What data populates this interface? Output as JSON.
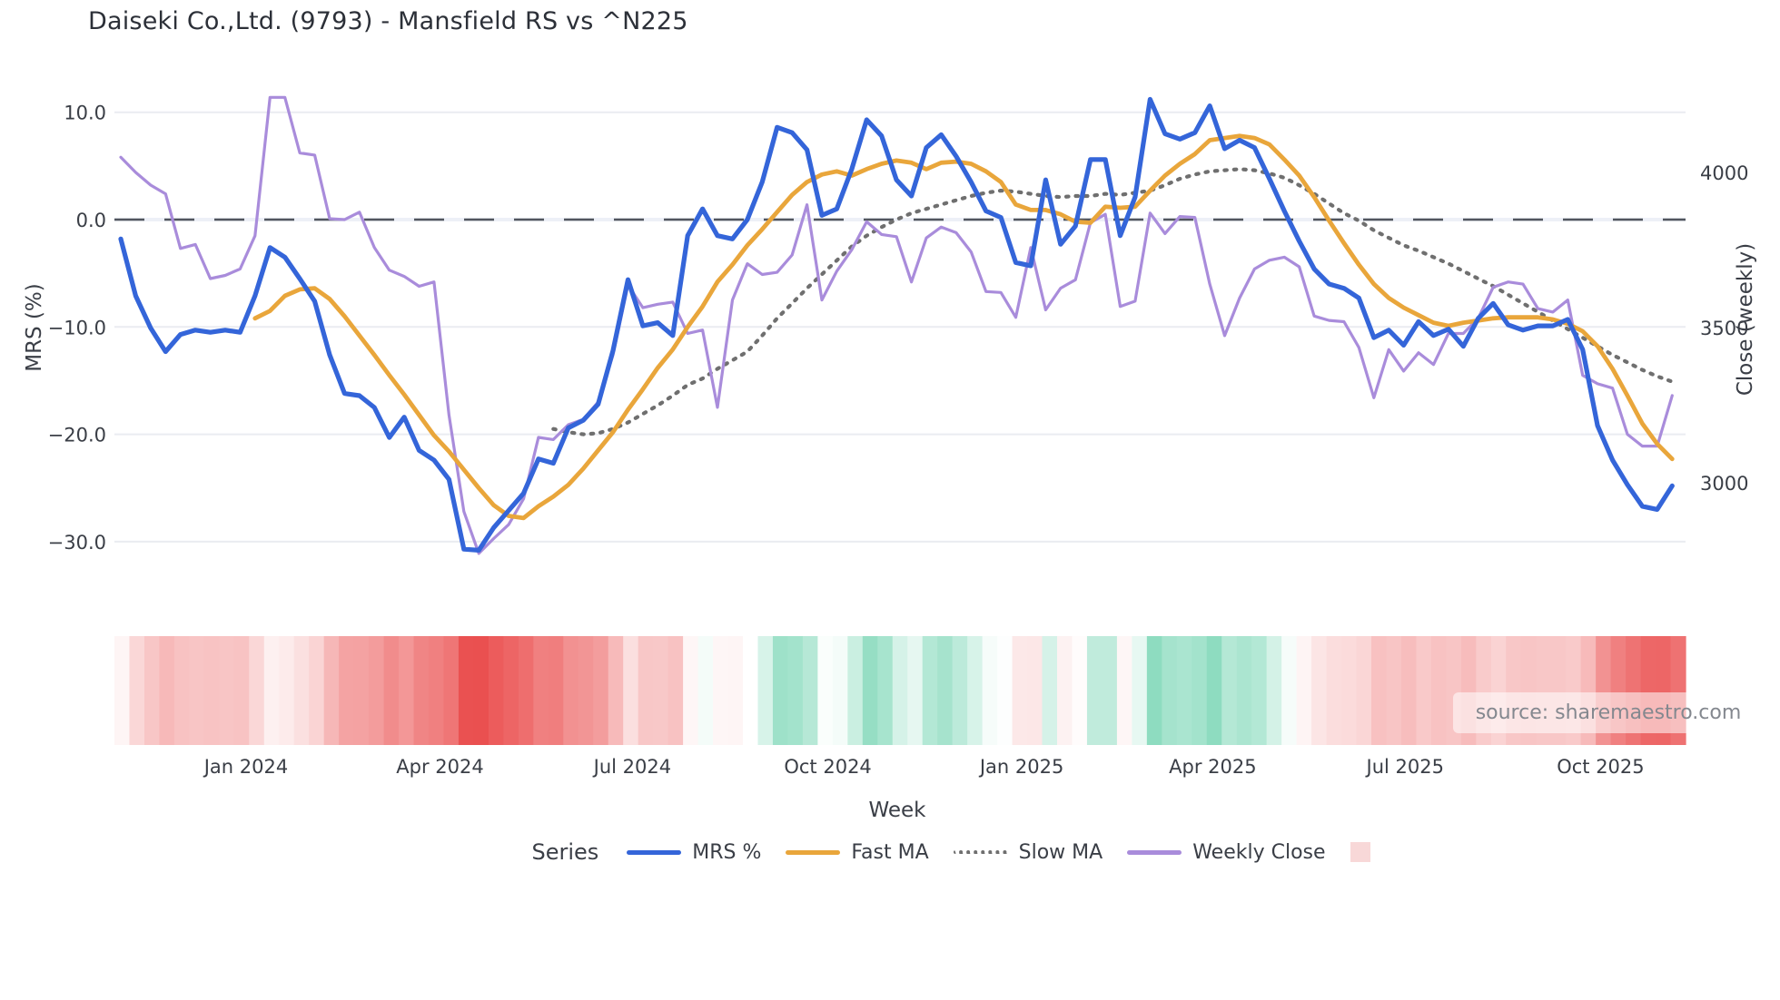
{
  "title": "Daiseki Co.,Ltd. (9793) - Mansfield RS vs ^N225",
  "watermark": "source: sharemaestro.com",
  "axes": {
    "left": {
      "title": "MRS (%)",
      "ticks": [
        {
          "label": "10.0",
          "value": 10
        },
        {
          "label": "0.0",
          "value": 0
        },
        {
          "label": "−10.0",
          "value": -10
        },
        {
          "label": "−20.0",
          "value": -20
        },
        {
          "label": "−30.0",
          "value": -30
        }
      ]
    },
    "right": {
      "title": "Close (weekly)",
      "ticks": [
        {
          "label": "4000",
          "value": 4000
        },
        {
          "label": "3500",
          "value": 3500
        },
        {
          "label": "3000",
          "value": 3000
        }
      ]
    },
    "x": {
      "title": "Week",
      "ticks": [
        {
          "label": "Jan 2024",
          "week": 8.4
        },
        {
          "label": "Apr 2024",
          "week": 21.4
        },
        {
          "label": "Jul 2024",
          "week": 34.3
        },
        {
          "label": "Oct 2024",
          "week": 47.4
        },
        {
          "label": "Jan 2025",
          "week": 60.4
        },
        {
          "label": "Apr 2025",
          "week": 73.2
        },
        {
          "label": "Jul 2025",
          "week": 86.1
        },
        {
          "label": "Oct 2025",
          "week": 99.2
        }
      ]
    }
  },
  "legend": {
    "title": "Series",
    "items": [
      {
        "label": "MRS %",
        "color": "#3465d9",
        "style": "solid"
      },
      {
        "label": "Fast MA",
        "color": "#e9a63b",
        "style": "solid"
      },
      {
        "label": "Slow MA",
        "color": "#6f6f6f",
        "style": "dotted"
      },
      {
        "label": "Weekly Close",
        "color": "#a98cdb",
        "style": "solid"
      },
      {
        "label": "",
        "color": "#f8d8d8",
        "style": "swatch"
      }
    ]
  },
  "colors": {
    "grid": "#eaecf1",
    "zero_line": "#52565e",
    "zero_band": "#edf0f7",
    "text": "#3a3e46",
    "blue": "#3465d9",
    "orange": "#e9a63b",
    "gray": "#6f6f6f",
    "purple": "#a98cdb",
    "heat_red": "#ea4f4f",
    "heat_green": "#8edcc0"
  },
  "chart_data": {
    "type": "line",
    "title": "Daiseki Co.,Ltd. (9793) - Mansfield RS vs ^N225",
    "xlabel": "Week",
    "ylabel_left": "MRS (%)",
    "ylabel_right": "Close (weekly)",
    "x_unit": "weekly index, ~Nov 2023 to ~Nov 2025",
    "n_points": 105,
    "ylim_left": [
      -33,
      13
    ],
    "right_axis_ticks": [
      3000,
      3500,
      4000
    ],
    "grid": true,
    "zero_reference_line": true,
    "series": [
      {
        "name": "MRS %",
        "axis": "left",
        "style": "solid",
        "width": 5.2,
        "color": "#3465d9",
        "values": [
          -1.8,
          -7.1,
          -10.1,
          -12.3,
          -10.7,
          -10.3,
          -10.5,
          -10.3,
          -10.5,
          -7.1,
          -2.6,
          -3.5,
          -5.5,
          -7.6,
          -12.6,
          -16.2,
          -16.4,
          -17.5,
          -20.3,
          -18.4,
          -21.5,
          -22.4,
          -24.2,
          -30.7,
          -30.8,
          -28.7,
          -27.1,
          -25.5,
          -22.3,
          -22.7,
          -19.4,
          -18.7,
          -17.2,
          -12.2,
          -5.6,
          -9.9,
          -9.6,
          -10.8,
          -1.5,
          1.0,
          -1.5,
          -1.8,
          0.0,
          3.5,
          8.6,
          8.1,
          6.5,
          0.4,
          1.0,
          4.7,
          9.3,
          7.8,
          3.7,
          2.2,
          6.7,
          7.9,
          5.9,
          3.5,
          0.8,
          0.2,
          -4.0,
          -4.3,
          3.7,
          -2.3,
          -0.6,
          5.6,
          5.6,
          -1.5,
          2.1,
          11.2,
          8.0,
          7.5,
          8.1,
          10.6,
          6.6,
          7.4,
          6.7,
          3.8,
          0.8,
          -2.0,
          -4.6,
          -6.0,
          -6.4,
          -7.3,
          -11.0,
          -10.3,
          -11.7,
          -9.5,
          -10.8,
          -10.2,
          -11.8,
          -9.2,
          -7.8,
          -9.8,
          -10.3,
          -9.9,
          -9.9,
          -9.3,
          -12.1,
          -19.2,
          -22.4,
          -24.7,
          -26.7,
          -27.0,
          -24.8
        ]
      },
      {
        "name": "Fast MA",
        "axis": "left",
        "style": "solid",
        "width": 4.8,
        "color": "#e9a63b",
        "values": [
          null,
          null,
          null,
          null,
          null,
          null,
          null,
          null,
          null,
          -9.2,
          -8.5,
          -7.1,
          -6.5,
          -6.4,
          -7.4,
          -9.0,
          -10.8,
          -12.6,
          -14.5,
          -16.3,
          -18.2,
          -20.1,
          -21.6,
          -23.3,
          -25.0,
          -26.6,
          -27.6,
          -27.8,
          -26.7,
          -25.8,
          -24.7,
          -23.2,
          -21.5,
          -19.8,
          -17.7,
          -15.8,
          -13.8,
          -12.1,
          -10.0,
          -8.1,
          -5.8,
          -4.2,
          -2.4,
          -0.9,
          0.7,
          2.3,
          3.5,
          4.2,
          4.5,
          4.1,
          4.7,
          5.2,
          5.5,
          5.3,
          4.7,
          5.3,
          5.4,
          5.2,
          4.5,
          3.5,
          1.4,
          0.9,
          0.9,
          0.5,
          -0.2,
          -0.3,
          1.2,
          1.1,
          1.2,
          2.7,
          4.1,
          5.2,
          6.1,
          7.4,
          7.6,
          7.8,
          7.6,
          7.0,
          5.6,
          4.1,
          2.1,
          -0.1,
          -2.2,
          -4.2,
          -6.0,
          -7.3,
          -8.2,
          -8.9,
          -9.6,
          -9.9,
          -9.6,
          -9.4,
          -9.2,
          -9.1,
          -9.1,
          -9.1,
          -9.3,
          -9.7,
          -10.4,
          -11.8,
          -13.9,
          -16.4,
          -19.0,
          -20.9,
          -22.3
        ]
      },
      {
        "name": "Slow MA",
        "axis": "left",
        "style": "dotted",
        "width": 4.2,
        "color": "#6f6f6f",
        "values": [
          null,
          null,
          null,
          null,
          null,
          null,
          null,
          null,
          null,
          null,
          null,
          null,
          null,
          null,
          null,
          null,
          null,
          null,
          null,
          null,
          null,
          null,
          null,
          null,
          null,
          null,
          null,
          null,
          null,
          -19.5,
          -19.8,
          -20.0,
          -19.9,
          -19.5,
          -18.9,
          -18.1,
          -17.3,
          -16.4,
          -15.4,
          -14.8,
          -13.9,
          -13.1,
          -12.3,
          -10.8,
          -9.2,
          -7.8,
          -6.4,
          -5.1,
          -3.8,
          -2.5,
          -1.5,
          -0.7,
          0.0,
          0.6,
          1.0,
          1.4,
          1.8,
          2.2,
          2.5,
          2.7,
          2.6,
          2.4,
          2.2,
          2.1,
          2.2,
          2.2,
          2.4,
          2.3,
          2.5,
          2.7,
          3.2,
          3.8,
          4.2,
          4.5,
          4.6,
          4.7,
          4.6,
          4.3,
          3.9,
          3.2,
          2.4,
          1.5,
          0.6,
          -0.1,
          -1.0,
          -1.7,
          -2.4,
          -2.9,
          -3.5,
          -4.1,
          -4.8,
          -5.5,
          -6.2,
          -7.0,
          -7.8,
          -8.6,
          -9.4,
          -10.2,
          -11.0,
          -11.8,
          -12.6,
          -13.3,
          -14.0,
          -14.6,
          -15.1
        ]
      },
      {
        "name": "Weekly Close",
        "axis": "right",
        "style": "solid",
        "width": 3.2,
        "color": "#a98cdb",
        "values": [
          4049,
          4000,
          3959,
          3931,
          3755,
          3768,
          3658,
          3668,
          3689,
          3796,
          4242,
          4242,
          4063,
          4056,
          3851,
          3848,
          3872,
          3758,
          3685,
          3665,
          3633,
          3647,
          3218,
          2907,
          2772,
          2820,
          2865,
          2948,
          3146,
          3139,
          3187,
          3204,
          3260,
          3412,
          3637,
          3564,
          3575,
          3582,
          3481,
          3492,
          3243,
          3589,
          3706,
          3671,
          3678,
          3734,
          3896,
          3589,
          3682,
          3751,
          3841,
          3800,
          3793,
          3647,
          3789,
          3824,
          3806,
          3744,
          3616,
          3613,
          3533,
          3758,
          3557,
          3627,
          3654,
          3838,
          3865,
          3568,
          3585,
          3869,
          3803,
          3858,
          3855,
          3640,
          3474,
          3595,
          3689,
          3717,
          3727,
          3696,
          3537,
          3523,
          3519,
          3436,
          3274,
          3429,
          3360,
          3419,
          3381,
          3481,
          3481,
          3530,
          3630,
          3647,
          3640,
          3561,
          3550,
          3589,
          3346,
          3319,
          3305,
          3156,
          3118,
          3118,
          3281
        ]
      }
    ],
    "heatmap_band": {
      "description": "weekly stripes under chart colored by MRS % value",
      "source_series": "MRS %",
      "negative_color": "#ea4f4f",
      "negative_cap": 31,
      "positive_color": "#8edcc0",
      "positive_cap": 10
    }
  }
}
